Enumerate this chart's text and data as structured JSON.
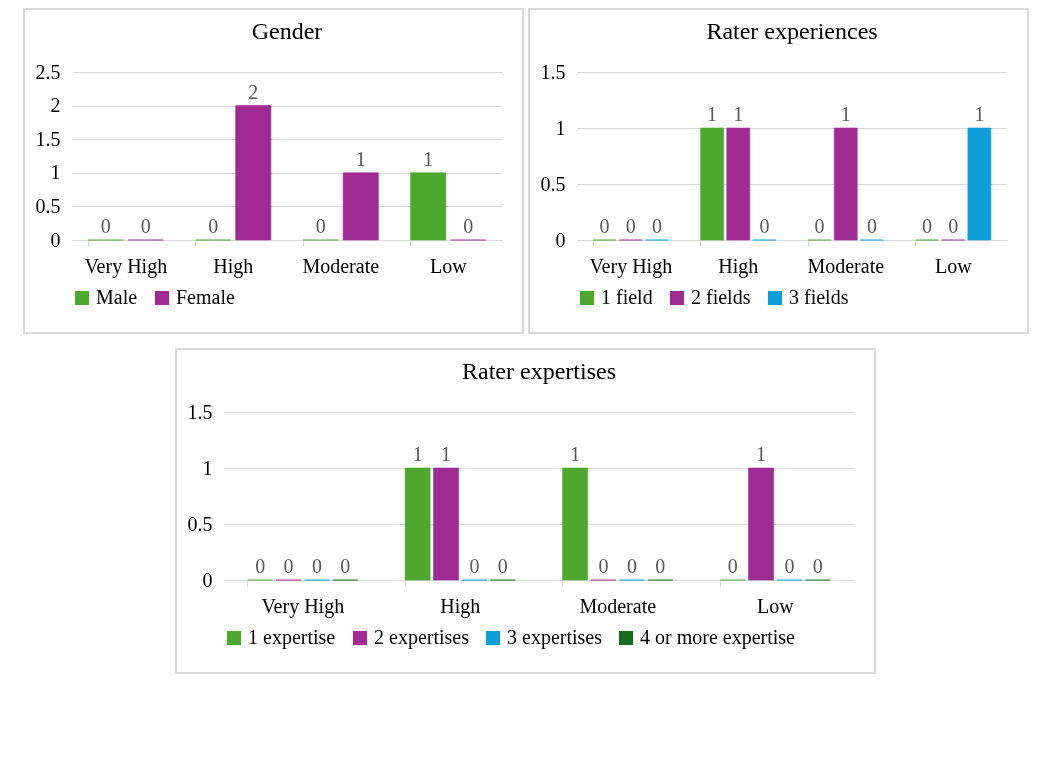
{
  "chart_data": [
    {
      "type": "bar",
      "title": "Gender",
      "categories": [
        "Very High",
        "High",
        "Moderate",
        "Low"
      ],
      "series": [
        {
          "name": "Male",
          "color": "#4ea72e",
          "values": [
            0,
            0,
            0,
            1
          ]
        },
        {
          "name": "Female",
          "color": "#a02b93",
          "values": [
            0,
            2,
            1,
            0
          ]
        }
      ],
      "ylim": [
        0,
        2.5
      ],
      "yticks": [
        0,
        0.5,
        1,
        1.5,
        2,
        2.5
      ],
      "grid": "y",
      "legend": "bottom",
      "data_labels": true
    },
    {
      "type": "bar",
      "title": "Rater experiences",
      "categories": [
        "Very High",
        "High",
        "Moderate",
        "Low"
      ],
      "series": [
        {
          "name": "1 field",
          "color": "#4ea72e",
          "values": [
            0,
            1,
            0,
            0
          ]
        },
        {
          "name": "2 fields",
          "color": "#a02b93",
          "values": [
            0,
            1,
            1,
            0
          ]
        },
        {
          "name": "3 fields",
          "color": "#0f9ed5",
          "values": [
            0,
            0,
            0,
            1
          ]
        }
      ],
      "ylim": [
        0,
        1.5
      ],
      "yticks": [
        0,
        0.5,
        1,
        1.5
      ],
      "grid": "y",
      "legend": "bottom",
      "data_labels": true
    },
    {
      "type": "bar",
      "title": "Rater expertises",
      "categories": [
        "Very High",
        "High",
        "Moderate",
        "Low"
      ],
      "series": [
        {
          "name": "1 expertise",
          "color": "#4ea72e",
          "values": [
            0,
            1,
            1,
            0
          ]
        },
        {
          "name": "2 expertises",
          "color": "#a02b93",
          "values": [
            0,
            1,
            0,
            1
          ]
        },
        {
          "name": "3 expertises",
          "color": "#0f9ed5",
          "values": [
            0,
            0,
            0,
            0
          ]
        },
        {
          "name": "4 or more expertise",
          "color": "#196b24",
          "values": [
            0,
            0,
            0,
            0
          ]
        }
      ],
      "ylim": [
        0,
        1.5
      ],
      "yticks": [
        0,
        0.5,
        1,
        1.5
      ],
      "grid": "y",
      "legend": "bottom",
      "data_labels": true
    }
  ]
}
